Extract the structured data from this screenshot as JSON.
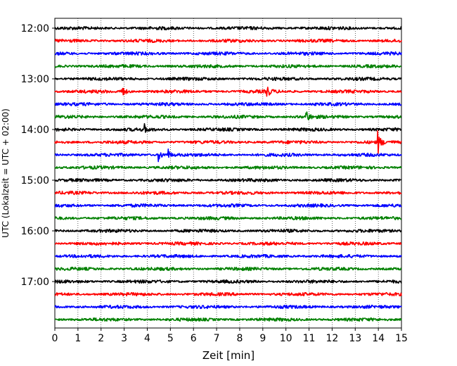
{
  "chart_data": {
    "type": "line",
    "subtype": "helicorder-seismogram",
    "xlabel": "Zeit  [min]",
    "ylabel": "UTC (Lokalzeit = UTC + 02:00)",
    "xlim": [
      0,
      15
    ],
    "x_ticks": [
      0,
      1,
      2,
      3,
      4,
      5,
      6,
      7,
      8,
      9,
      10,
      11,
      12,
      13,
      14,
      15
    ],
    "y_tick_labels": [
      "12:00",
      "13:00",
      "14:00",
      "15:00",
      "16:00",
      "17:00"
    ],
    "trace_start": "12:00",
    "trace_end": "17:45",
    "minutes_per_trace": 15,
    "trace_colors": [
      "#000000",
      "#ff0000",
      "#0000ff",
      "#008000"
    ],
    "grid": "vertical dotted lines at each minute",
    "events": [
      {
        "trace": "13:15",
        "minute": 2.9,
        "amplitude": 1.4
      },
      {
        "trace": "13:15",
        "minute": 9.2,
        "amplitude": 0.9
      },
      {
        "trace": "13:45",
        "minute": 10.9,
        "amplitude": 0.9
      },
      {
        "trace": "14:15",
        "minute": 14.0,
        "amplitude": 1.5
      },
      {
        "trace": "14:30",
        "minute": 4.5,
        "amplitude": 1.2
      },
      {
        "trace": "14:30",
        "minute": 4.9,
        "amplitude": 0.8
      },
      {
        "trace": "14:00",
        "minute": 3.9,
        "amplitude": 0.6
      }
    ]
  }
}
